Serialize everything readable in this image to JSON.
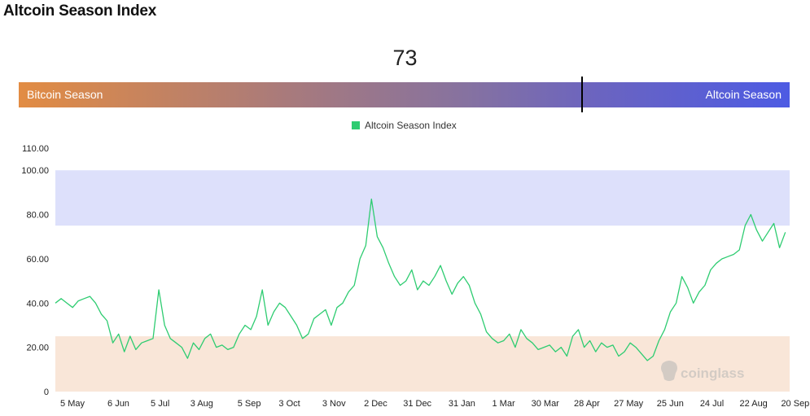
{
  "page": {
    "title": "Altcoin Season Index"
  },
  "gauge": {
    "value": "73",
    "left_label": "Bitcoin Season",
    "right_label": "Altcoin Season"
  },
  "watermark": "coinglass",
  "colors": {
    "line": "#2ecc71",
    "altcoin_zone": "#dde0fb",
    "bitcoin_zone": "#f9e6d8",
    "gauge_left": "#e28c43",
    "gauge_right": "#4d5be3"
  },
  "chart_data": {
    "type": "line",
    "title": "",
    "xlabel": "",
    "ylabel": "",
    "ylim": [
      0,
      110
    ],
    "yticks": [
      "0",
      "20.00",
      "40.00",
      "60.00",
      "80.00",
      "100.00",
      "110.00"
    ],
    "ytick_values": [
      0,
      20,
      40,
      60,
      80,
      100,
      110
    ],
    "xticks": [
      "5 May",
      "6 Jun",
      "5 Jul",
      "3 Aug",
      "5 Sep",
      "3 Oct",
      "3 Nov",
      "2 Dec",
      "31 Dec",
      "31 Jan",
      "1 Mar",
      "30 Mar",
      "28 Apr",
      "27 May",
      "25 Jun",
      "24 Jul",
      "22 Aug",
      "20 Sep"
    ],
    "x_day_index": [
      0,
      32,
      61,
      90,
      123,
      151,
      182,
      211,
      240,
      271,
      300,
      329,
      358,
      387,
      416,
      445,
      474,
      503
    ],
    "bands": [
      {
        "from": 75,
        "to": 100,
        "zone": "altcoin"
      },
      {
        "from": 0,
        "to": 25,
        "zone": "bitcoin"
      }
    ],
    "series": [
      {
        "name": "Altcoin Season Index",
        "x_day": [
          0,
          4,
          8,
          12,
          16,
          20,
          24,
          28,
          32,
          36,
          40,
          44,
          48,
          52,
          56,
          60,
          64,
          68,
          72,
          76,
          80,
          84,
          88,
          92,
          96,
          100,
          104,
          108,
          112,
          116,
          120,
          124,
          128,
          132,
          136,
          140,
          144,
          148,
          152,
          156,
          160,
          164,
          168,
          172,
          176,
          180,
          184,
          188,
          192,
          196,
          200,
          204,
          208,
          212,
          216,
          220,
          224,
          228,
          232,
          236,
          240,
          244,
          248,
          252,
          256,
          260,
          264,
          268,
          272,
          276,
          280,
          284,
          288,
          292,
          296,
          300,
          304,
          308,
          312,
          316,
          320,
          324,
          328,
          332,
          336,
          340,
          344,
          348,
          352,
          356,
          360,
          364,
          368,
          372,
          376,
          380,
          384,
          388,
          392,
          396,
          400,
          404,
          408,
          412,
          416,
          420,
          424,
          428,
          432,
          436,
          440,
          444,
          448,
          452,
          456,
          460,
          464,
          468,
          472,
          476,
          480,
          484,
          488,
          492,
          496,
          500,
          504,
          508
        ],
        "values": [
          40,
          42,
          40,
          38,
          41,
          42,
          43,
          40,
          35,
          32,
          22,
          26,
          18,
          25,
          19,
          22,
          23,
          24,
          46,
          30,
          24,
          22,
          20,
          15,
          22,
          19,
          24,
          26,
          20,
          21,
          19,
          20,
          26,
          30,
          28,
          34,
          46,
          30,
          36,
          40,
          38,
          34,
          30,
          24,
          26,
          33,
          35,
          37,
          30,
          38,
          40,
          45,
          48,
          60,
          66,
          87,
          70,
          65,
          58,
          52,
          48,
          50,
          55,
          46,
          50,
          48,
          52,
          57,
          50,
          44,
          49,
          52,
          48,
          40,
          35,
          27,
          24,
          22,
          23,
          26,
          20,
          28,
          24,
          22,
          19,
          20,
          21,
          18,
          20,
          16,
          25,
          28,
          20,
          23,
          18,
          22,
          20,
          21,
          16,
          18,
          22,
          20,
          17,
          14,
          16,
          23,
          28,
          36,
          40,
          52,
          47,
          40,
          45,
          48,
          55,
          58,
          60,
          61,
          62,
          64,
          75,
          80,
          73,
          68,
          72,
          76,
          65,
          72
        ]
      }
    ]
  }
}
